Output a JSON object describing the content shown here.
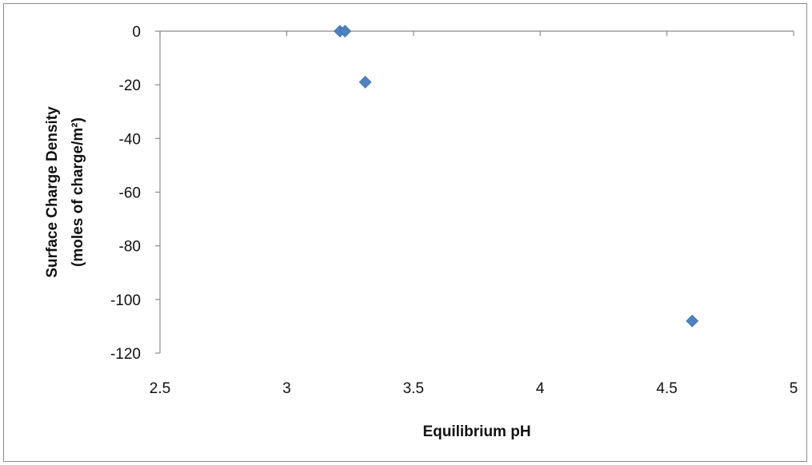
{
  "chart_data": {
    "type": "scatter",
    "title": "",
    "xlabel": "Equilibrium pH",
    "ylabel_lines": [
      "Surface Charge Density",
      "(moles of charge/m²)"
    ],
    "xlim": [
      2.5,
      5
    ],
    "ylim": [
      -120,
      0
    ],
    "x_ticks": [
      2.5,
      3,
      3.5,
      4,
      4.5,
      5
    ],
    "x_tick_labels": [
      "2.5",
      "3",
      "3.5",
      "4",
      "4.5",
      "5"
    ],
    "y_ticks": [
      0,
      -20,
      -40,
      -60,
      -80,
      -100,
      -120
    ],
    "y_tick_labels": [
      "0",
      "-20",
      "-40",
      "-60",
      "-80",
      "-100",
      "-120"
    ],
    "grid": false,
    "legend": "none",
    "marker": "diamond",
    "marker_color": "#4f81bd",
    "series": [
      {
        "points": [
          {
            "x": 3.21,
            "y": 0
          },
          {
            "x": 3.23,
            "y": 0
          },
          {
            "x": 3.31,
            "y": -19
          },
          {
            "x": 4.6,
            "y": -108
          }
        ]
      }
    ]
  }
}
